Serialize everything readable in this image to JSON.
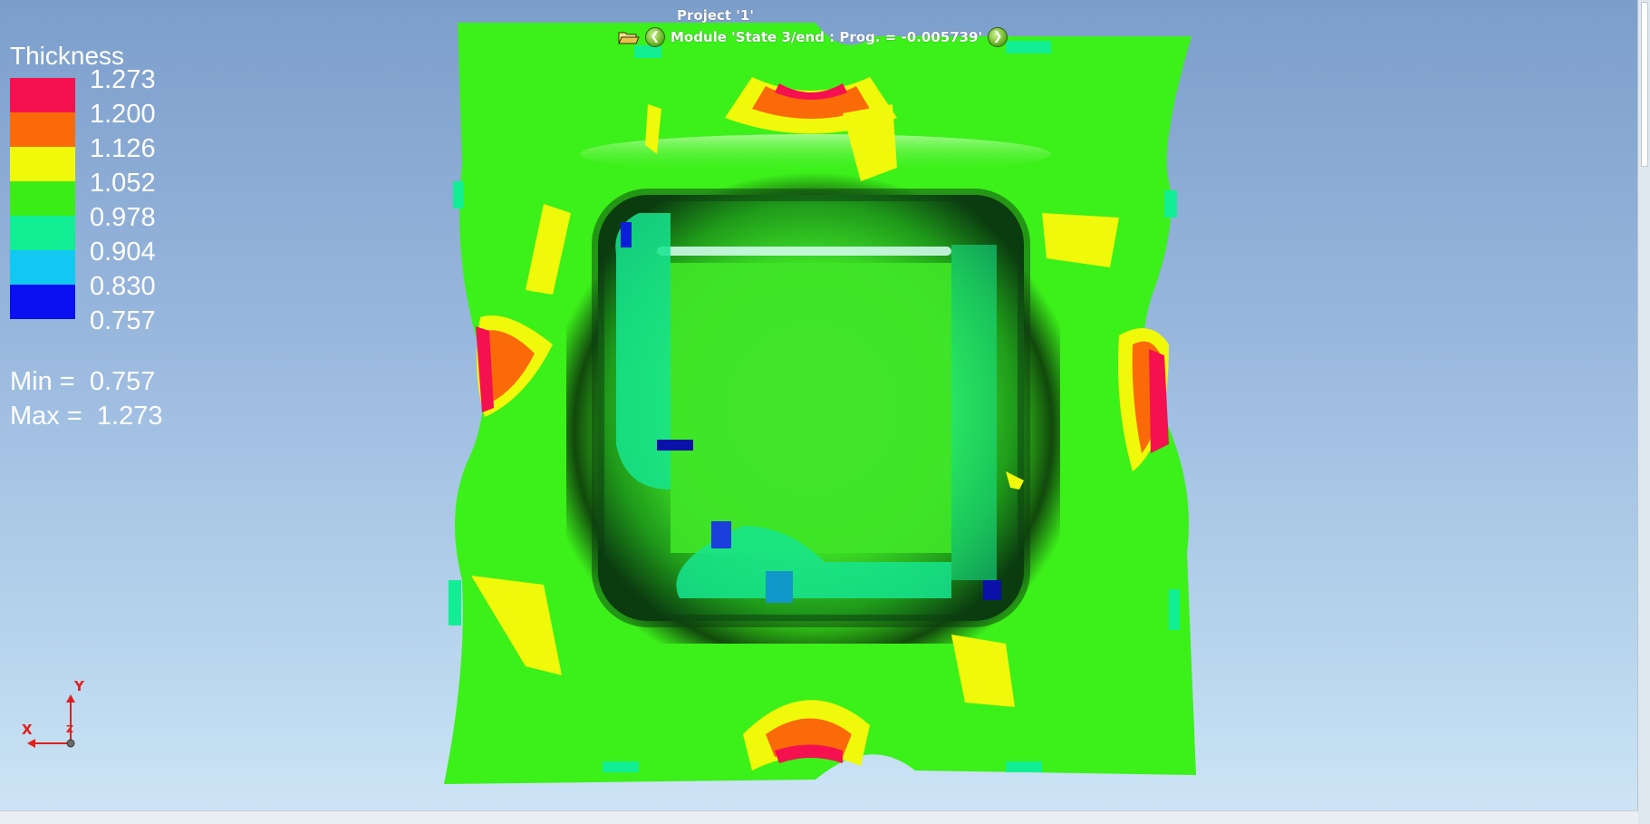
{
  "header": {
    "project_title": "Project '1'",
    "module_label": "Module 'State 3/end : Prog. = -0.005739'",
    "prev_icon": "arrow-left-icon",
    "next_icon": "arrow-right-icon",
    "open_icon": "open-folder-icon"
  },
  "legend": {
    "title": "Thickness",
    "ticks": [
      "1.273",
      "1.200",
      "1.126",
      "1.052",
      "0.978",
      "0.904",
      "0.830",
      "0.757"
    ],
    "colors": [
      "#f5104f",
      "#fb6a08",
      "#f1f90b",
      "#3cec16",
      "#11ee93",
      "#11c8f2",
      "#0a10f0"
    ],
    "min_label": "Min =  0.757",
    "max_label": "Max =  1.273"
  },
  "axis": {
    "x": "X",
    "y": "Y",
    "z": "Z"
  },
  "colors": {
    "mesh_base": "#3cf01a",
    "mesh_dark": "#083d10",
    "background_top": "#7c9ecb",
    "background_bottom": "#cfe6f6"
  }
}
